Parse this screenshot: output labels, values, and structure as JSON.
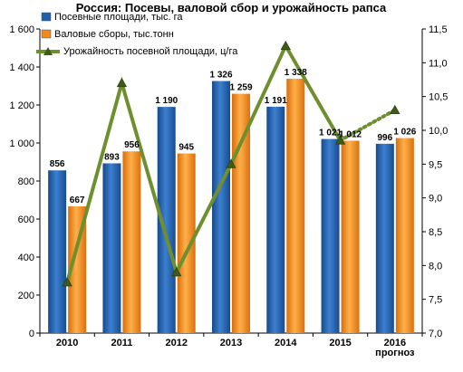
{
  "chart_data": {
    "type": "bar",
    "title": "Россия: Посевы, валовой сбор и урожайность рапса",
    "categories": [
      "2010",
      "2011",
      "2012",
      "2013",
      "2014",
      "2015",
      "2016"
    ],
    "category_sublabels": [
      "",
      "",
      "",
      "",
      "",
      "",
      "прогноз"
    ],
    "y_left": {
      "min": 0,
      "max": 1600,
      "step": 200,
      "ticks": [
        "0",
        "200",
        "400",
        "600",
        "800",
        "1 000",
        "1 200",
        "1 400",
        "1 600"
      ]
    },
    "y_right": {
      "min": 7.0,
      "max": 11.5,
      "step": 0.5,
      "ticks": [
        "7,0",
        "7,5",
        "8,0",
        "8,5",
        "9,0",
        "9,5",
        "10,0",
        "10,5",
        "11,0",
        "11,5"
      ]
    },
    "series": [
      {
        "name": "Посевные площади, тыс. га",
        "kind": "bar",
        "axis": "left",
        "color": "#1f5fae",
        "values": [
          856,
          893,
          1190,
          1326,
          1191,
          1021,
          996
        ],
        "labels": [
          "856",
          "893",
          "1 190",
          "1 326",
          "1 191",
          "1 021",
          "996"
        ]
      },
      {
        "name": "Валовые сборы, тыс.тонн",
        "kind": "bar",
        "axis": "left",
        "color": "#f28a1e",
        "values": [
          667,
          956,
          945,
          1259,
          1338,
          1012,
          1026
        ],
        "labels": [
          "667",
          "956",
          "945",
          "1 259",
          "1 338",
          "1 012",
          "1 026"
        ]
      },
      {
        "name": "Урожайность посевной площади, ц/га",
        "kind": "line",
        "axis": "right",
        "color": "#6d8f2e",
        "values": [
          7.75,
          10.7,
          7.9,
          9.5,
          11.25,
          9.85,
          10.3
        ],
        "dotted_last_segment": true
      }
    ],
    "legend_position": "top-left",
    "grid": false
  }
}
